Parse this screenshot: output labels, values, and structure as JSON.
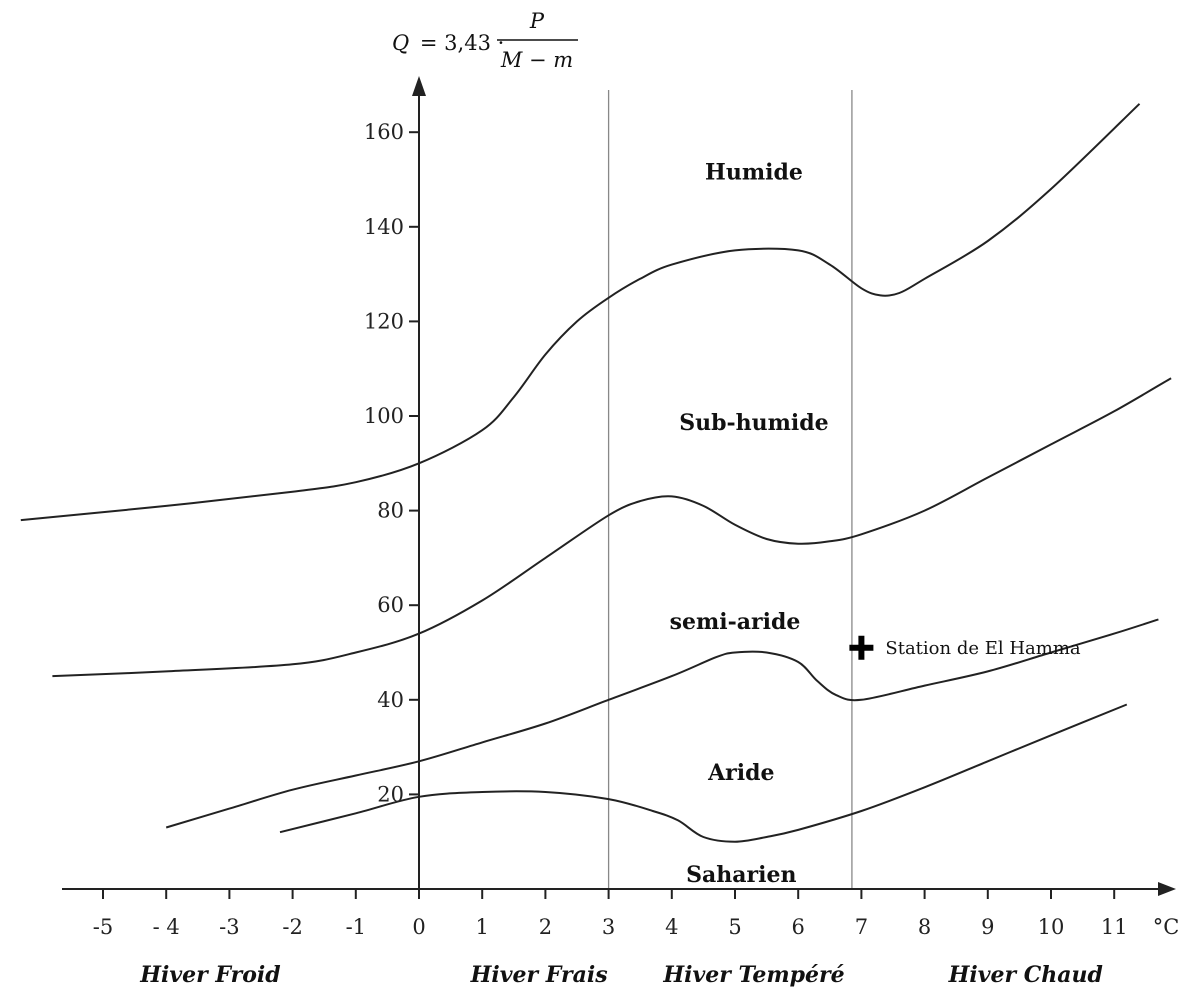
{
  "chart_data": {
    "type": "line",
    "formula": {
      "lhs": "Q",
      "eq_const": "= 3,43 ·",
      "numerator": "P",
      "denominator": "M − m"
    },
    "x_unit": "°C",
    "xlim": [
      -6.3,
      11.9
    ],
    "ylim": [
      -6,
      172
    ],
    "x_ticks": [
      -5,
      -4,
      -3,
      -2,
      -1,
      0,
      1,
      2,
      3,
      4,
      5,
      6,
      7,
      8,
      9,
      10,
      11
    ],
    "x_tick_labels": [
      "-5",
      "- 4",
      "-3",
      "-2",
      "-1",
      "0",
      "1",
      "2",
      "3",
      "4",
      "5",
      "6",
      "7",
      "8",
      "9",
      "10",
      "11"
    ],
    "y_ticks": [
      20,
      40,
      60,
      80,
      100,
      120,
      140,
      160
    ],
    "y_tick_labels": [
      "20",
      "40",
      "60",
      "80",
      "100",
      "120",
      "140",
      "160"
    ],
    "winter_dividers": [
      3,
      6.85
    ],
    "series": [
      {
        "points": [
          [
            -6.3,
            78
          ],
          [
            -4,
            81
          ],
          [
            -2,
            84
          ],
          [
            -1,
            86
          ],
          [
            0,
            90
          ],
          [
            1,
            97
          ],
          [
            1.5,
            104
          ],
          [
            2,
            113
          ],
          [
            2.5,
            120
          ],
          [
            3,
            125
          ],
          [
            3.5,
            129
          ],
          [
            4,
            132
          ],
          [
            5,
            135
          ],
          [
            6,
            135
          ],
          [
            6.5,
            132
          ],
          [
            7,
            127
          ],
          [
            7.3,
            125.5
          ],
          [
            7.6,
            126
          ],
          [
            8,
            129
          ],
          [
            9,
            137
          ],
          [
            10,
            148
          ],
          [
            11.4,
            166
          ]
        ]
      },
      {
        "points": [
          [
            -5.8,
            45
          ],
          [
            -4,
            46
          ],
          [
            -2,
            47.5
          ],
          [
            -1,
            50
          ],
          [
            0,
            54
          ],
          [
            1,
            61
          ],
          [
            2,
            70
          ],
          [
            3,
            79
          ],
          [
            3.5,
            82
          ],
          [
            4,
            83
          ],
          [
            4.5,
            81
          ],
          [
            5,
            77
          ],
          [
            5.5,
            74
          ],
          [
            6,
            73
          ],
          [
            6.5,
            73.5
          ],
          [
            7,
            75
          ],
          [
            8,
            80
          ],
          [
            9,
            87
          ],
          [
            10,
            94
          ],
          [
            11,
            101
          ],
          [
            11.9,
            108
          ]
        ]
      },
      {
        "points": [
          [
            -4,
            13
          ],
          [
            -3,
            17
          ],
          [
            -2,
            21
          ],
          [
            -1,
            24
          ],
          [
            0,
            27
          ],
          [
            1,
            31
          ],
          [
            2,
            35
          ],
          [
            3,
            40
          ],
          [
            4,
            45
          ],
          [
            4.7,
            49
          ],
          [
            5,
            50
          ],
          [
            5.5,
            50
          ],
          [
            6,
            48
          ],
          [
            6.3,
            44
          ],
          [
            6.6,
            41
          ],
          [
            7,
            40
          ],
          [
            8,
            43
          ],
          [
            9,
            46
          ],
          [
            10,
            50
          ],
          [
            11,
            54
          ],
          [
            11.7,
            57
          ]
        ]
      },
      {
        "points": [
          [
            -2.2,
            12
          ],
          [
            -1,
            16
          ],
          [
            0,
            19.5
          ],
          [
            1,
            20.5
          ],
          [
            2,
            20.5
          ],
          [
            3,
            19
          ],
          [
            3.7,
            16.5
          ],
          [
            4.1,
            14.5
          ],
          [
            4.5,
            11
          ],
          [
            5,
            10
          ],
          [
            5.5,
            11
          ],
          [
            6,
            12.5
          ],
          [
            7,
            16.5
          ],
          [
            8,
            21.5
          ],
          [
            9,
            27
          ],
          [
            10,
            32.5
          ],
          [
            11.2,
            39
          ]
        ]
      }
    ],
    "zones": [
      {
        "label": "Humide",
        "x": 5.3,
        "y": 150
      },
      {
        "label": "Sub-humide",
        "x": 5.3,
        "y": 97
      },
      {
        "label": "semi-aride",
        "x": 5,
        "y": 55
      },
      {
        "label": "Aride",
        "x": 5.1,
        "y": 23
      },
      {
        "label": "Saharien",
        "x": 5.1,
        "y": 1.5
      }
    ],
    "winter_types": [
      {
        "label": "Hiver Froid",
        "x": -3.3
      },
      {
        "label": "Hiver Frais",
        "x": 1.9
      },
      {
        "label": "Hiver Tempéré",
        "x": 5.3
      },
      {
        "label": "Hiver Chaud",
        "x": 9.6
      }
    ],
    "station": {
      "label": "Station de El Hamma",
      "x": 7,
      "y": 51
    }
  }
}
